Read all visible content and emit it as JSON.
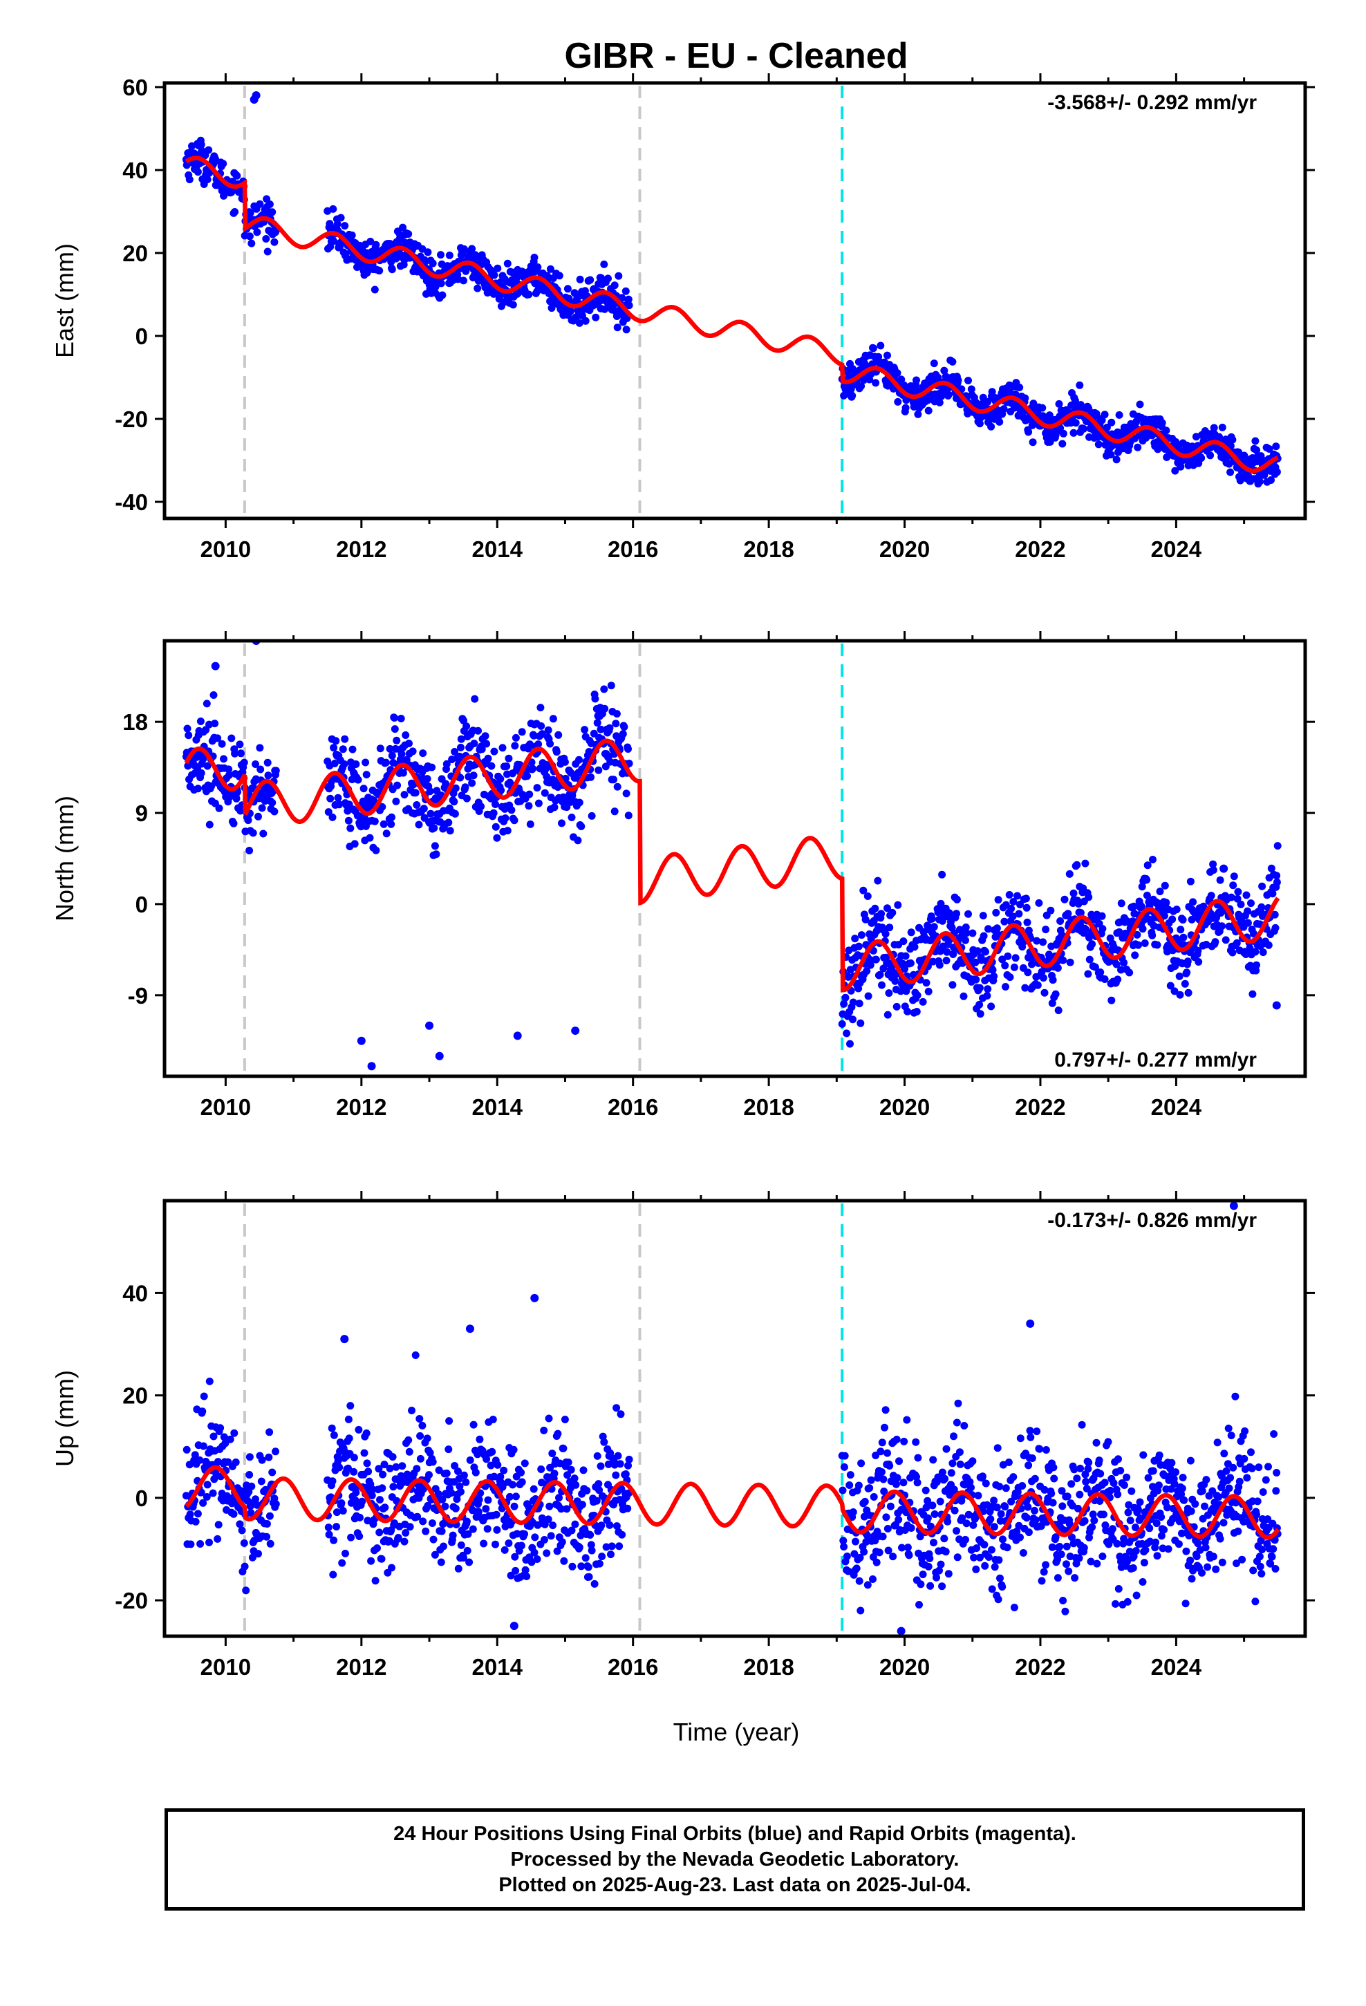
{
  "title": "GIBR  - EU - Cleaned",
  "xlabel": "Time (year)",
  "x_ticks": [
    "2010",
    "2012",
    "2014",
    "2016",
    "2018",
    "2020",
    "2022",
    "2024"
  ],
  "footer": {
    "line1": "24 Hour Positions Using Final Orbits (blue) and Rapid Orbits (magenta).",
    "line2": "Processed by the Nevada Geodetic Laboratory.",
    "line3": "Plotted on 2025-Aug-23. Last data on 2025-Jul-04."
  },
  "colors": {
    "points": "#0000ff",
    "model": "#ff0000",
    "equipment_change": "#c8c8c8",
    "earthquake": "#00e5e5"
  },
  "chart_data": [
    {
      "type": "scatter",
      "title": "GIBR  - EU - Cleaned",
      "ylabel": "East (mm)",
      "rate": "-3.568+/- 0.292 mm/yr",
      "xlim": [
        2009.1,
        2025.9
      ],
      "ylim": [
        -44,
        61
      ],
      "y_ticks": [
        "60",
        "40",
        "20",
        "0",
        "-20",
        "-40"
      ],
      "y_tick_values": [
        60,
        40,
        20,
        0,
        -20,
        -40
      ],
      "vlines": [
        {
          "x": 2010.28,
          "kind": "gray"
        },
        {
          "x": 2016.1,
          "kind": "gray"
        },
        {
          "x": 2019.08,
          "kind": "cyan"
        }
      ],
      "model": {
        "base": 41,
        "slope": -3.568,
        "amp": 2.5,
        "phase": 0.35,
        "jumps": [
          {
            "x": 2010.28,
            "dy": -11
          },
          {
            "x": 2019.08,
            "dy": -4
          }
        ]
      },
      "data_ranges": [
        [
          2009.42,
          2010.75
        ],
        [
          2011.5,
          2015.95
        ],
        [
          2019.08,
          2025.5
        ]
      ],
      "noise": 2.5,
      "outliers": [
        {
          "x": 2010.45,
          "y": 58
        },
        {
          "x": 2010.42,
          "y": 57
        }
      ]
    },
    {
      "type": "scatter",
      "ylabel": "North (mm)",
      "rate": "0.797+/- 0.277 mm/yr",
      "xlim": [
        2009.1,
        2025.9
      ],
      "ylim": [
        -17,
        26
      ],
      "y_ticks": [
        "18",
        "9",
        "0",
        "-9"
      ],
      "y_tick_values": [
        18,
        9,
        0,
        -9
      ],
      "vlines": [
        {
          "x": 2010.28,
          "kind": "gray"
        },
        {
          "x": 2016.1,
          "kind": "gray"
        },
        {
          "x": 2019.08,
          "kind": "cyan"
        }
      ],
      "model": {
        "base": 13,
        "slope": 0.797,
        "amp": 2.2,
        "phase": 0.35,
        "jumps": [
          {
            "x": 2010.28,
            "dy": -4
          },
          {
            "x": 2016.1,
            "dy": -12
          },
          {
            "x": 2019.08,
            "dy": -11
          }
        ]
      },
      "data_ranges": [
        [
          2009.42,
          2010.75
        ],
        [
          2011.5,
          2015.95
        ],
        [
          2019.08,
          2025.5
        ]
      ],
      "noise": 2.5,
      "outliers": [
        {
          "x": 2009.85,
          "y": 23.5
        },
        {
          "x": 2010.45,
          "y": 26
        },
        {
          "x": 2012.15,
          "y": -16
        },
        {
          "x": 2013.15,
          "y": -15
        },
        {
          "x": 2012.0,
          "y": -13.5
        },
        {
          "x": 2013.0,
          "y": -12
        },
        {
          "x": 2014.3,
          "y": -13
        },
        {
          "x": 2015.15,
          "y": -12.5
        },
        {
          "x": 2024.7,
          "y": 3.5
        },
        {
          "x": 2025.48,
          "y": -10
        }
      ]
    },
    {
      "type": "scatter",
      "ylabel": "Up (mm)",
      "rate": "-0.173+/- 0.826 mm/yr",
      "xlim": [
        2009.1,
        2025.9
      ],
      "ylim": [
        -27,
        58
      ],
      "y_ticks": [
        "40",
        "20",
        "0",
        "-20"
      ],
      "y_tick_values": [
        40,
        20,
        0,
        -20
      ],
      "vlines": [
        {
          "x": 2010.28,
          "kind": "gray"
        },
        {
          "x": 2016.1,
          "kind": "gray"
        },
        {
          "x": 2019.08,
          "kind": "cyan"
        }
      ],
      "model": {
        "base": 2,
        "slope": -0.173,
        "amp": 4,
        "phase": 0.6,
        "jumps": [
          {
            "x": 2010.28,
            "dy": -2
          },
          {
            "x": 2019.08,
            "dy": -1
          }
        ]
      },
      "data_ranges": [
        [
          2009.42,
          2010.75
        ],
        [
          2011.5,
          2015.95
        ],
        [
          2019.08,
          2025.5
        ]
      ],
      "noise": 7,
      "outliers": [
        {
          "x": 2014.55,
          "y": 39
        },
        {
          "x": 2024.85,
          "y": 57
        },
        {
          "x": 2021.85,
          "y": 34
        },
        {
          "x": 2013.6,
          "y": 33
        },
        {
          "x": 2019.95,
          "y": -26
        },
        {
          "x": 2014.25,
          "y": -25
        },
        {
          "x": 2011.75,
          "y": 31
        }
      ]
    }
  ]
}
